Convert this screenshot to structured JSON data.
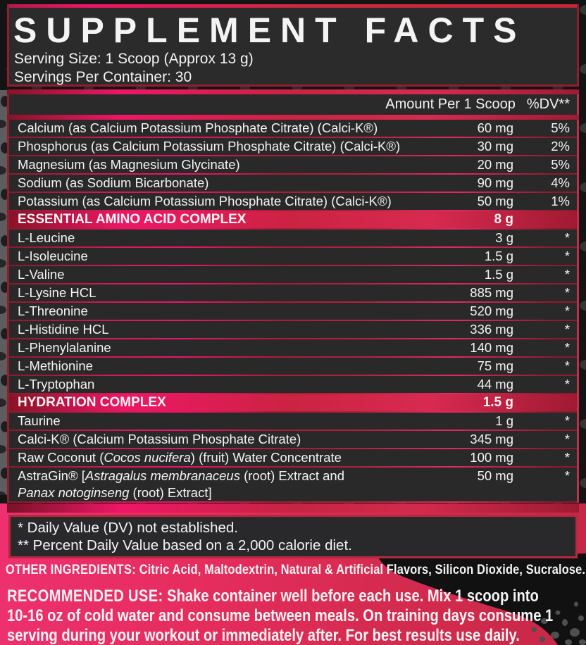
{
  "panel": {
    "title": "SUPPLEMENT FACTS",
    "serving_size": "Serving Size: 1 Scoop (Approx 13 g)",
    "servings_per_container": "Servings Per Container: 30",
    "amount_header": "Amount Per 1 Scoop",
    "dv_header": "%DV**"
  },
  "rows": [
    {
      "type": "nutrient",
      "name": "Calcium (as Calcium Potassium Phosphate Citrate) (Calci-K®)",
      "amount": "60 mg",
      "dv": "5%"
    },
    {
      "type": "nutrient",
      "name": "Phosphorus (as Calcium Potassium Phosphate Citrate) (Calci-K®)",
      "amount": "30 mg",
      "dv": "2%"
    },
    {
      "type": "nutrient",
      "name": "Magnesium (as Magnesium Glycinate)",
      "amount": "20 mg",
      "dv": "5%"
    },
    {
      "type": "nutrient",
      "name": "Sodium (as Sodium Bicarbonate)",
      "amount": "90 mg",
      "dv": "4%"
    },
    {
      "type": "nutrient",
      "name": "Potassium (as Calcium Potassium Phosphate Citrate) (Calci-K®)",
      "amount": "50 mg",
      "dv": "1%"
    },
    {
      "type": "section",
      "name": "ESSENTIAL AMINO ACID COMPLEX",
      "amount": "8 g",
      "dv": ""
    },
    {
      "type": "nutrient",
      "name": "L-Leucine",
      "amount": "3 g",
      "dv": "*"
    },
    {
      "type": "nutrient",
      "name": "L-Isoleucine",
      "amount": "1.5 g",
      "dv": "*"
    },
    {
      "type": "nutrient",
      "name": "L-Valine",
      "amount": "1.5 g",
      "dv": "*"
    },
    {
      "type": "nutrient",
      "name": "L-Lysine HCL",
      "amount": "885 mg",
      "dv": "*"
    },
    {
      "type": "nutrient",
      "name": "L-Threonine",
      "amount": "520 mg",
      "dv": "*"
    },
    {
      "type": "nutrient",
      "name": "L-Histidine HCL",
      "amount": "336 mg",
      "dv": "*"
    },
    {
      "type": "nutrient",
      "name": "L-Phenylalanine",
      "amount": "140 mg",
      "dv": "*"
    },
    {
      "type": "nutrient",
      "name": "L-Methionine",
      "amount": "75 mg",
      "dv": "*"
    },
    {
      "type": "nutrient",
      "name": "L-Tryptophan",
      "amount": "44 mg",
      "dv": "*"
    },
    {
      "type": "section",
      "name": "HYDRATION COMPLEX",
      "amount": "1.5 g",
      "dv": ""
    },
    {
      "type": "nutrient",
      "name": "Taurine",
      "amount": "1 g",
      "dv": "*"
    },
    {
      "type": "nutrient",
      "name": "Calci-K® (Calcium Potassium Phosphate Citrate)",
      "amount": "345 mg",
      "dv": "*"
    },
    {
      "type": "nutrient",
      "name_parts": [
        {
          "text": "Raw Coconut ("
        },
        {
          "text": "Cocos nucifera",
          "italic": true
        },
        {
          "text": ") (fruit) Water Concentrate"
        }
      ],
      "amount": "100 mg",
      "dv": "*"
    },
    {
      "type": "nutrient",
      "name_parts": [
        {
          "text": "AstraGin® ["
        },
        {
          "text": "Astragalus membranaceus",
          "italic": true
        },
        {
          "text": " (root) Extract and"
        },
        {
          "text": "Panax notoginseng",
          "italic": true,
          "br_before": true
        },
        {
          "text": " (root) Extract]"
        }
      ],
      "amount": "50 mg",
      "dv": "*"
    }
  ],
  "footnotes": {
    "line1": "* Daily Value (DV) not established.",
    "line2": "** Percent Daily Value based on a 2,000 calorie diet."
  },
  "other_ingredients": {
    "label": "OTHER INGREDIENTS:",
    "text": " Citric Acid, Maltodextrin, Natural & Artificial Flavors,  Silicon Dioxide, Sucralose."
  },
  "recommended_use": {
    "label": "RECOMMENDED USE:",
    "line1": " Shake container well before each use. Mix 1 scoop into",
    "line2": "10-16 oz of cold water and consume between meals. On training days consume 1",
    "line3": "serving during your workout or immediately after. For best results use daily."
  },
  "colors": {
    "panel_fill": "#29292a",
    "border_red": "#8e1f30",
    "magenta_accent": "#ee1766",
    "crimson_accent": "#cb2342",
    "pink_bg_left": "#ee3070",
    "pink_bg_right": "#c62846",
    "text": "#f4f4f4",
    "outer_bg": "#141414"
  }
}
